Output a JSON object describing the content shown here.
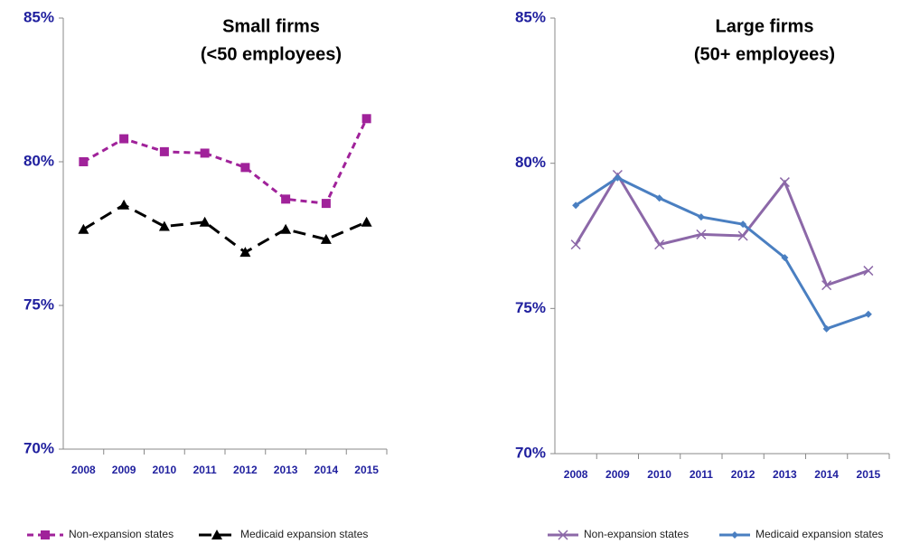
{
  "chart_data": [
    {
      "type": "line",
      "title": "Small firms",
      "subtitle": "(<50 employees)",
      "categories": [
        "2008",
        "2009",
        "2010",
        "2011",
        "2012",
        "2013",
        "2014",
        "2015"
      ],
      "ylim": [
        70,
        85
      ],
      "yticks": [
        {
          "value": 70,
          "label": "70%"
        },
        {
          "value": 75,
          "label": "75%"
        },
        {
          "value": 80,
          "label": "80%"
        },
        {
          "value": 85,
          "label": "85%"
        }
      ],
      "series": [
        {
          "name": "Non-expansion states",
          "color": "#a0229a",
          "marker": "square",
          "line_style": "dashed",
          "values": [
            80.0,
            80.8,
            80.35,
            80.3,
            79.8,
            78.7,
            78.55,
            81.5
          ]
        },
        {
          "name": "Medicaid expansion states",
          "color": "#000000",
          "marker": "triangle",
          "line_style": "dashed",
          "values": [
            77.65,
            78.5,
            77.75,
            77.9,
            76.85,
            77.65,
            77.3,
            77.9
          ]
        }
      ]
    },
    {
      "type": "line",
      "title": "Large firms",
      "subtitle": "(50+ employees)",
      "categories": [
        "2008",
        "2009",
        "2010",
        "2011",
        "2012",
        "2013",
        "2014",
        "2015"
      ],
      "ylim": [
        70,
        85
      ],
      "yticks": [
        {
          "value": 70,
          "label": "70%"
        },
        {
          "value": 75,
          "label": "75%"
        },
        {
          "value": 80,
          "label": "80%"
        },
        {
          "value": 85,
          "label": "85%"
        }
      ],
      "series": [
        {
          "name": "Non-expansion states",
          "color": "#8c68a8",
          "marker": "x",
          "line_style": "solid",
          "values": [
            77.2,
            79.6,
            77.2,
            77.55,
            77.5,
            79.35,
            75.8,
            76.3
          ]
        },
        {
          "name": "Medicaid expansion states",
          "color": "#4a7fc1",
          "marker": "diamond",
          "line_style": "solid",
          "values": [
            78.55,
            79.5,
            78.8,
            78.15,
            77.9,
            76.75,
            74.3,
            74.8
          ]
        }
      ]
    }
  ]
}
